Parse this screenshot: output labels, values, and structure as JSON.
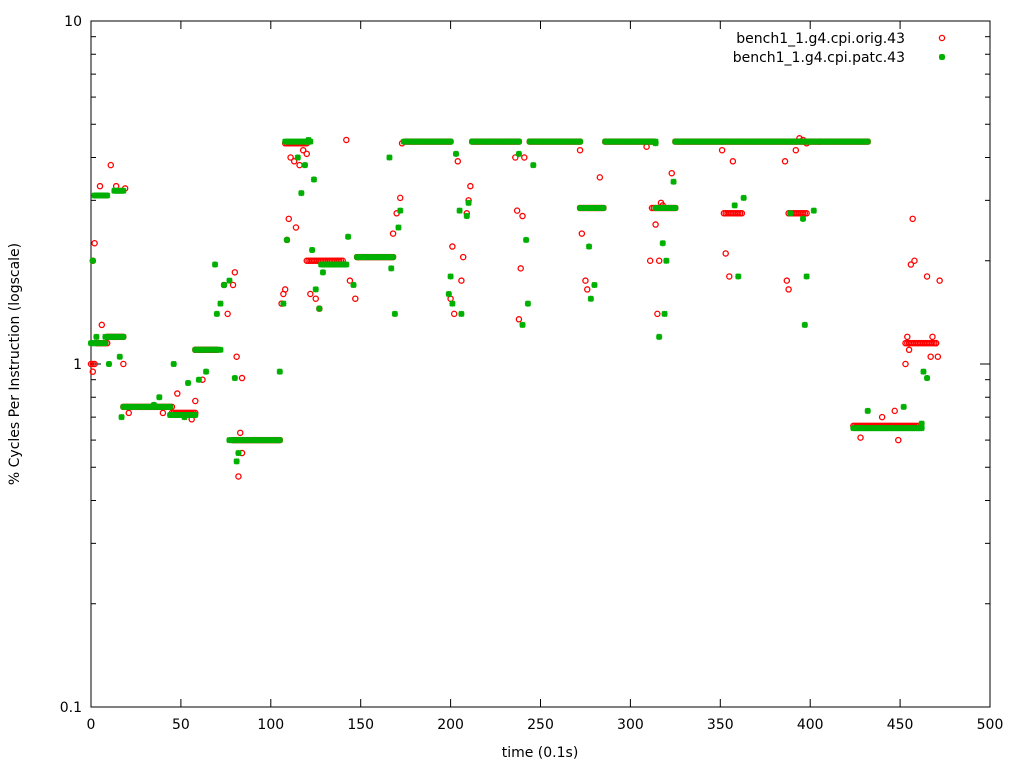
{
  "chart_data": {
    "type": "scatter",
    "title": "",
    "xlabel": "time (0.1s)",
    "ylabel": "% Cycles Per Instruction (logscale)",
    "xlim": [
      0,
      500
    ],
    "ylim": [
      0.1,
      10
    ],
    "yscale": "log",
    "grid": false,
    "legend_position": "top-right",
    "x_ticks": [
      0,
      50,
      100,
      150,
      200,
      250,
      300,
      350,
      400,
      450,
      500
    ],
    "x_tick_labels": [
      "0",
      "50",
      "100",
      "150",
      "200",
      "250",
      "300",
      "350",
      "400",
      "450",
      "500"
    ],
    "y_ticks": [
      0.1,
      1,
      10
    ],
    "y_tick_labels": [
      "0.1",
      "1",
      "10"
    ],
    "series": [
      {
        "name": "bench1_1.g4.cpi.orig.43",
        "color": "#ff0000",
        "marker": "open-circle",
        "segments": [
          {
            "x0": 0,
            "x1": 2,
            "y": 1.0
          },
          {
            "x0": 3,
            "x1": 9,
            "y": 1.15
          },
          {
            "x0": 9,
            "x1": 18,
            "y": 1.2
          },
          {
            "x0": 18,
            "x1": 45,
            "y": 0.75
          },
          {
            "x0": 45,
            "x1": 58,
            "y": 0.72
          },
          {
            "x0": 58,
            "x1": 70,
            "y": 1.1
          },
          {
            "x0": 79,
            "x1": 105,
            "y": 0.6
          },
          {
            "x0": 108,
            "x1": 120,
            "y": 4.4
          },
          {
            "x0": 120,
            "x1": 140,
            "y": 2.0
          },
          {
            "x0": 148,
            "x1": 168,
            "y": 2.05
          },
          {
            "x0": 175,
            "x1": 200,
            "y": 4.45
          },
          {
            "x0": 212,
            "x1": 238,
            "y": 4.45
          },
          {
            "x0": 244,
            "x1": 272,
            "y": 4.45
          },
          {
            "x0": 272,
            "x1": 285,
            "y": 2.85
          },
          {
            "x0": 286,
            "x1": 313,
            "y": 4.45
          },
          {
            "x0": 312,
            "x1": 325,
            "y": 2.85
          },
          {
            "x0": 325,
            "x1": 405,
            "y": 4.45
          },
          {
            "x0": 352,
            "x1": 362,
            "y": 2.75
          },
          {
            "x0": 388,
            "x1": 398,
            "y": 2.75
          },
          {
            "x0": 405,
            "x1": 432,
            "y": 4.45
          },
          {
            "x0": 424,
            "x1": 460,
            "y": 0.66
          },
          {
            "x0": 453,
            "x1": 470,
            "y": 1.15
          }
        ],
        "points": [
          {
            "x": 1,
            "y": 2.0
          },
          {
            "x": 2,
            "y": 2.25
          },
          {
            "x": 1,
            "y": 0.95
          },
          {
            "x": 5,
            "y": 3.3
          },
          {
            "x": 6,
            "y": 1.3
          },
          {
            "x": 11,
            "y": 3.8
          },
          {
            "x": 14,
            "y": 3.3
          },
          {
            "x": 19,
            "y": 3.25
          },
          {
            "x": 18,
            "y": 1.0
          },
          {
            "x": 21,
            "y": 0.72
          },
          {
            "x": 40,
            "y": 0.72
          },
          {
            "x": 48,
            "y": 0.82
          },
          {
            "x": 56,
            "y": 0.69
          },
          {
            "x": 58,
            "y": 0.78
          },
          {
            "x": 62,
            "y": 0.9
          },
          {
            "x": 74,
            "y": 1.7
          },
          {
            "x": 76,
            "y": 1.4
          },
          {
            "x": 79,
            "y": 1.7
          },
          {
            "x": 80,
            "y": 1.85
          },
          {
            "x": 81,
            "y": 1.05
          },
          {
            "x": 82,
            "y": 0.47
          },
          {
            "x": 83,
            "y": 0.63
          },
          {
            "x": 84,
            "y": 0.55
          },
          {
            "x": 84,
            "y": 0.91
          },
          {
            "x": 106,
            "y": 1.5
          },
          {
            "x": 107,
            "y": 1.6
          },
          {
            "x": 108,
            "y": 1.65
          },
          {
            "x": 109,
            "y": 2.3
          },
          {
            "x": 110,
            "y": 2.65
          },
          {
            "x": 111,
            "y": 4.0
          },
          {
            "x": 113,
            "y": 3.9
          },
          {
            "x": 114,
            "y": 2.5
          },
          {
            "x": 116,
            "y": 3.8
          },
          {
            "x": 118,
            "y": 4.2
          },
          {
            "x": 120,
            "y": 4.1
          },
          {
            "x": 122,
            "y": 1.6
          },
          {
            "x": 125,
            "y": 1.55
          },
          {
            "x": 127,
            "y": 1.45
          },
          {
            "x": 142,
            "y": 4.5
          },
          {
            "x": 144,
            "y": 1.75
          },
          {
            "x": 147,
            "y": 1.55
          },
          {
            "x": 168,
            "y": 2.4
          },
          {
            "x": 170,
            "y": 2.75
          },
          {
            "x": 172,
            "y": 3.05
          },
          {
            "x": 173,
            "y": 4.4
          },
          {
            "x": 200,
            "y": 1.55
          },
          {
            "x": 201,
            "y": 2.2
          },
          {
            "x": 202,
            "y": 1.4
          },
          {
            "x": 204,
            "y": 3.9
          },
          {
            "x": 206,
            "y": 1.75
          },
          {
            "x": 207,
            "y": 2.05
          },
          {
            "x": 209,
            "y": 2.75
          },
          {
            "x": 210,
            "y": 3.0
          },
          {
            "x": 211,
            "y": 3.3
          },
          {
            "x": 236,
            "y": 4.0
          },
          {
            "x": 237,
            "y": 2.8
          },
          {
            "x": 238,
            "y": 1.35
          },
          {
            "x": 239,
            "y": 1.9
          },
          {
            "x": 240,
            "y": 2.7
          },
          {
            "x": 241,
            "y": 4.0
          },
          {
            "x": 272,
            "y": 4.2
          },
          {
            "x": 273,
            "y": 2.4
          },
          {
            "x": 275,
            "y": 1.75
          },
          {
            "x": 276,
            "y": 1.65
          },
          {
            "x": 283,
            "y": 3.5
          },
          {
            "x": 309,
            "y": 4.3
          },
          {
            "x": 311,
            "y": 2.0
          },
          {
            "x": 314,
            "y": 2.55
          },
          {
            "x": 315,
            "y": 1.4
          },
          {
            "x": 316,
            "y": 2.0
          },
          {
            "x": 317,
            "y": 2.95
          },
          {
            "x": 318,
            "y": 2.9
          },
          {
            "x": 323,
            "y": 3.6
          },
          {
            "x": 351,
            "y": 4.2
          },
          {
            "x": 353,
            "y": 2.1
          },
          {
            "x": 355,
            "y": 1.8
          },
          {
            "x": 357,
            "y": 3.9
          },
          {
            "x": 386,
            "y": 3.9
          },
          {
            "x": 387,
            "y": 1.75
          },
          {
            "x": 388,
            "y": 1.65
          },
          {
            "x": 392,
            "y": 4.2
          },
          {
            "x": 394,
            "y": 4.55
          },
          {
            "x": 396,
            "y": 4.5
          },
          {
            "x": 398,
            "y": 4.4
          },
          {
            "x": 428,
            "y": 0.61
          },
          {
            "x": 440,
            "y": 0.7
          },
          {
            "x": 447,
            "y": 0.73
          },
          {
            "x": 449,
            "y": 0.6
          },
          {
            "x": 453,
            "y": 1.0
          },
          {
            "x": 454,
            "y": 1.2
          },
          {
            "x": 455,
            "y": 1.1
          },
          {
            "x": 456,
            "y": 1.95
          },
          {
            "x": 457,
            "y": 2.65
          },
          {
            "x": 458,
            "y": 2.0
          },
          {
            "x": 465,
            "y": 1.8
          },
          {
            "x": 467,
            "y": 1.05
          },
          {
            "x": 468,
            "y": 1.2
          },
          {
            "x": 470,
            "y": 1.15
          },
          {
            "x": 471,
            "y": 1.05
          },
          {
            "x": 472,
            "y": 1.75
          }
        ]
      },
      {
        "name": "bench1_1.g4.cpi.patc.43",
        "color": "#00b000",
        "marker": "filled-star",
        "segments": [
          {
            "x0": 2,
            "x1": 9,
            "y": 3.1
          },
          {
            "x0": 13,
            "x1": 18,
            "y": 3.2
          },
          {
            "x0": 0,
            "x1": 8,
            "y": 1.15
          },
          {
            "x0": 8,
            "x1": 18,
            "y": 1.2
          },
          {
            "x0": 18,
            "x1": 44,
            "y": 0.75
          },
          {
            "x0": 44,
            "x1": 58,
            "y": 0.71
          },
          {
            "x0": 58,
            "x1": 72,
            "y": 1.1
          },
          {
            "x0": 77,
            "x1": 105,
            "y": 0.6
          },
          {
            "x0": 108,
            "x1": 122,
            "y": 4.45
          },
          {
            "x0": 128,
            "x1": 142,
            "y": 1.95
          },
          {
            "x0": 148,
            "x1": 168,
            "y": 2.05
          },
          {
            "x0": 174,
            "x1": 200,
            "y": 4.45
          },
          {
            "x0": 212,
            "x1": 238,
            "y": 4.45
          },
          {
            "x0": 244,
            "x1": 272,
            "y": 4.45
          },
          {
            "x0": 272,
            "x1": 285,
            "y": 2.85
          },
          {
            "x0": 286,
            "x1": 314,
            "y": 4.45
          },
          {
            "x0": 314,
            "x1": 325,
            "y": 2.85
          },
          {
            "x0": 325,
            "x1": 432,
            "y": 4.45
          },
          {
            "x0": 424,
            "x1": 462,
            "y": 0.65
          }
        ],
        "points": [
          {
            "x": 1,
            "y": 2.0
          },
          {
            "x": 1,
            "y": 1.15
          },
          {
            "x": 3,
            "y": 1.2
          },
          {
            "x": 10,
            "y": 1.0
          },
          {
            "x": 16,
            "y": 1.05
          },
          {
            "x": 17,
            "y": 0.7
          },
          {
            "x": 35,
            "y": 0.76
          },
          {
            "x": 38,
            "y": 0.8
          },
          {
            "x": 46,
            "y": 1.0
          },
          {
            "x": 52,
            "y": 0.7
          },
          {
            "x": 54,
            "y": 0.88
          },
          {
            "x": 60,
            "y": 0.9
          },
          {
            "x": 64,
            "y": 0.95
          },
          {
            "x": 69,
            "y": 1.95
          },
          {
            "x": 70,
            "y": 1.4
          },
          {
            "x": 72,
            "y": 1.5
          },
          {
            "x": 74,
            "y": 1.7
          },
          {
            "x": 77,
            "y": 1.75
          },
          {
            "x": 80,
            "y": 0.91
          },
          {
            "x": 81,
            "y": 0.52
          },
          {
            "x": 82,
            "y": 0.55
          },
          {
            "x": 105,
            "y": 0.95
          },
          {
            "x": 107,
            "y": 1.5
          },
          {
            "x": 109,
            "y": 2.3
          },
          {
            "x": 115,
            "y": 4.0
          },
          {
            "x": 117,
            "y": 3.15
          },
          {
            "x": 119,
            "y": 3.8
          },
          {
            "x": 121,
            "y": 4.5
          },
          {
            "x": 123,
            "y": 2.15
          },
          {
            "x": 124,
            "y": 3.45
          },
          {
            "x": 125,
            "y": 1.65
          },
          {
            "x": 127,
            "y": 1.45
          },
          {
            "x": 129,
            "y": 1.85
          },
          {
            "x": 143,
            "y": 2.35
          },
          {
            "x": 146,
            "y": 1.7
          },
          {
            "x": 166,
            "y": 4.0
          },
          {
            "x": 167,
            "y": 1.9
          },
          {
            "x": 169,
            "y": 1.4
          },
          {
            "x": 171,
            "y": 2.5
          },
          {
            "x": 172,
            "y": 2.8
          },
          {
            "x": 199,
            "y": 1.6
          },
          {
            "x": 200,
            "y": 1.8
          },
          {
            "x": 201,
            "y": 1.5
          },
          {
            "x": 203,
            "y": 4.1
          },
          {
            "x": 205,
            "y": 2.8
          },
          {
            "x": 206,
            "y": 1.4
          },
          {
            "x": 209,
            "y": 2.7
          },
          {
            "x": 210,
            "y": 2.95
          },
          {
            "x": 238,
            "y": 4.1
          },
          {
            "x": 240,
            "y": 1.3
          },
          {
            "x": 242,
            "y": 2.3
          },
          {
            "x": 243,
            "y": 1.5
          },
          {
            "x": 246,
            "y": 3.8
          },
          {
            "x": 277,
            "y": 2.2
          },
          {
            "x": 278,
            "y": 1.55
          },
          {
            "x": 280,
            "y": 1.7
          },
          {
            "x": 314,
            "y": 4.4
          },
          {
            "x": 316,
            "y": 1.2
          },
          {
            "x": 318,
            "y": 2.25
          },
          {
            "x": 319,
            "y": 1.4
          },
          {
            "x": 320,
            "y": 2.0
          },
          {
            "x": 324,
            "y": 3.4
          },
          {
            "x": 358,
            "y": 2.9
          },
          {
            "x": 360,
            "y": 1.8
          },
          {
            "x": 363,
            "y": 3.05
          },
          {
            "x": 389,
            "y": 2.75
          },
          {
            "x": 396,
            "y": 2.65
          },
          {
            "x": 397,
            "y": 1.3
          },
          {
            "x": 398,
            "y": 1.8
          },
          {
            "x": 402,
            "y": 2.8
          },
          {
            "x": 432,
            "y": 0.73
          },
          {
            "x": 452,
            "y": 0.75
          },
          {
            "x": 462,
            "y": 0.67
          },
          {
            "x": 463,
            "y": 0.95
          },
          {
            "x": 465,
            "y": 0.91
          }
        ]
      }
    ]
  }
}
